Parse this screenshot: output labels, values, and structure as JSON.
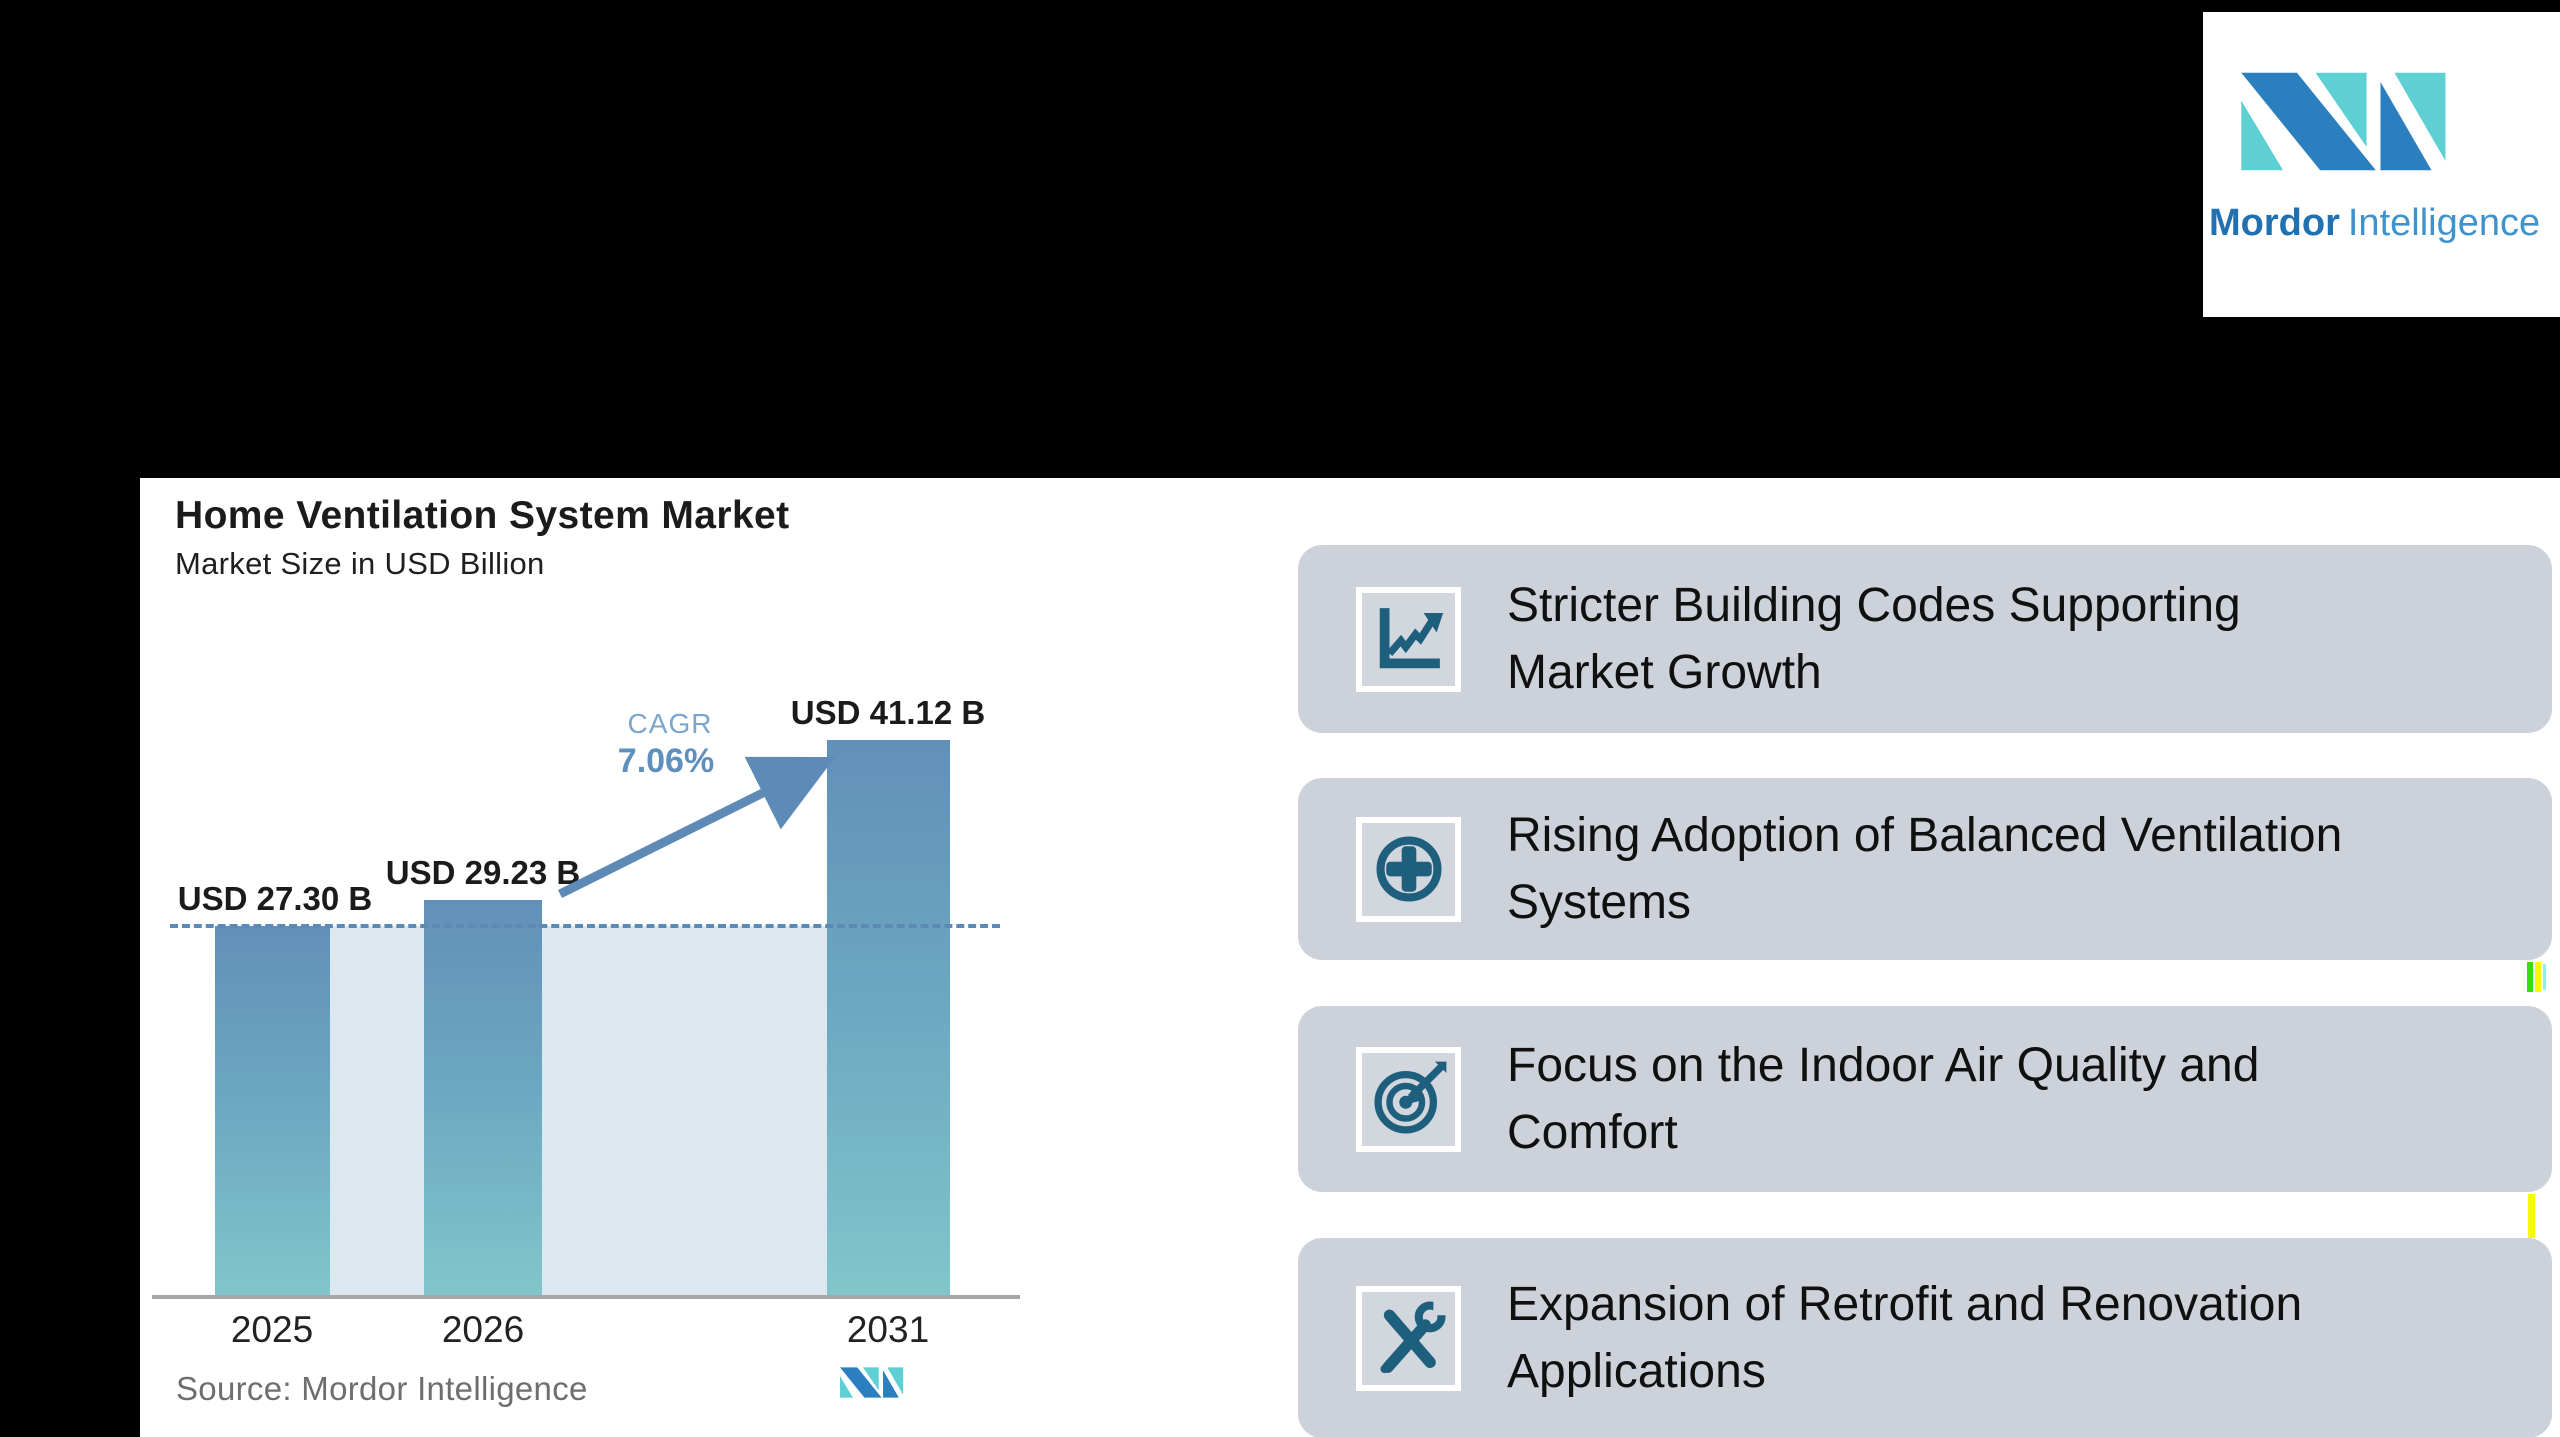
{
  "brand": {
    "name_bold": "Mordor",
    "name_light": "Intelligence",
    "logo_mark_icon": "mordor-m-logo-icon",
    "colors": {
      "dark_blue": "#2b7fbe",
      "teal": "#5ecfd2"
    }
  },
  "chart": {
    "title": "Home Ventilation System Market",
    "subtitle": "Market Size in USD Billion",
    "source": "Source: Mordor Intelligence"
  },
  "chart_data": {
    "type": "bar",
    "title": "Home Ventilation System Market",
    "subtitle": "Market Size in USD Billion",
    "categories": [
      "2025",
      "2026",
      "2031"
    ],
    "values": [
      27.3,
      29.23,
      41.12
    ],
    "labels": [
      "USD 27.30 B",
      "USD 29.23 B",
      "USD 41.12 B"
    ],
    "unit": "USD Billion",
    "ylim": [
      0,
      45
    ],
    "grid": false,
    "annotations": {
      "cagr_label": "CAGR",
      "cagr_value": "7.06%",
      "reference_line_at": 27.3
    },
    "bar_gradient": [
      "#6290b9",
      "#82c5ca"
    ],
    "band_color": "#dce7f0",
    "dashed_line_color": "#5d8ab4",
    "source": "Source: Mordor Intelligence"
  },
  "cards": [
    {
      "icon": "line-chart-icon",
      "line1": "Stricter Building Codes Supporting",
      "line2": "Market Growth"
    },
    {
      "icon": "medical-plus-icon",
      "line1": "Rising Adoption of Balanced Ventilation",
      "line2": "Systems"
    },
    {
      "icon": "target-arrow-icon",
      "line1": "Focus on the Indoor Air Quality and",
      "line2": "Comfort"
    },
    {
      "icon": "tools-icon",
      "line1": "Expansion of Retrofit and Renovation",
      "line2": "Applications"
    }
  ],
  "colors": {
    "card_background": "#cdd2da",
    "icon_color": "#1e5f7e",
    "slide_background": "#ffffff",
    "canvas_background": "#000000",
    "artifact_green": "#33e000",
    "artifact_yellow": "#f6fa00",
    "artifact_cyan": "#8ef0ee"
  }
}
